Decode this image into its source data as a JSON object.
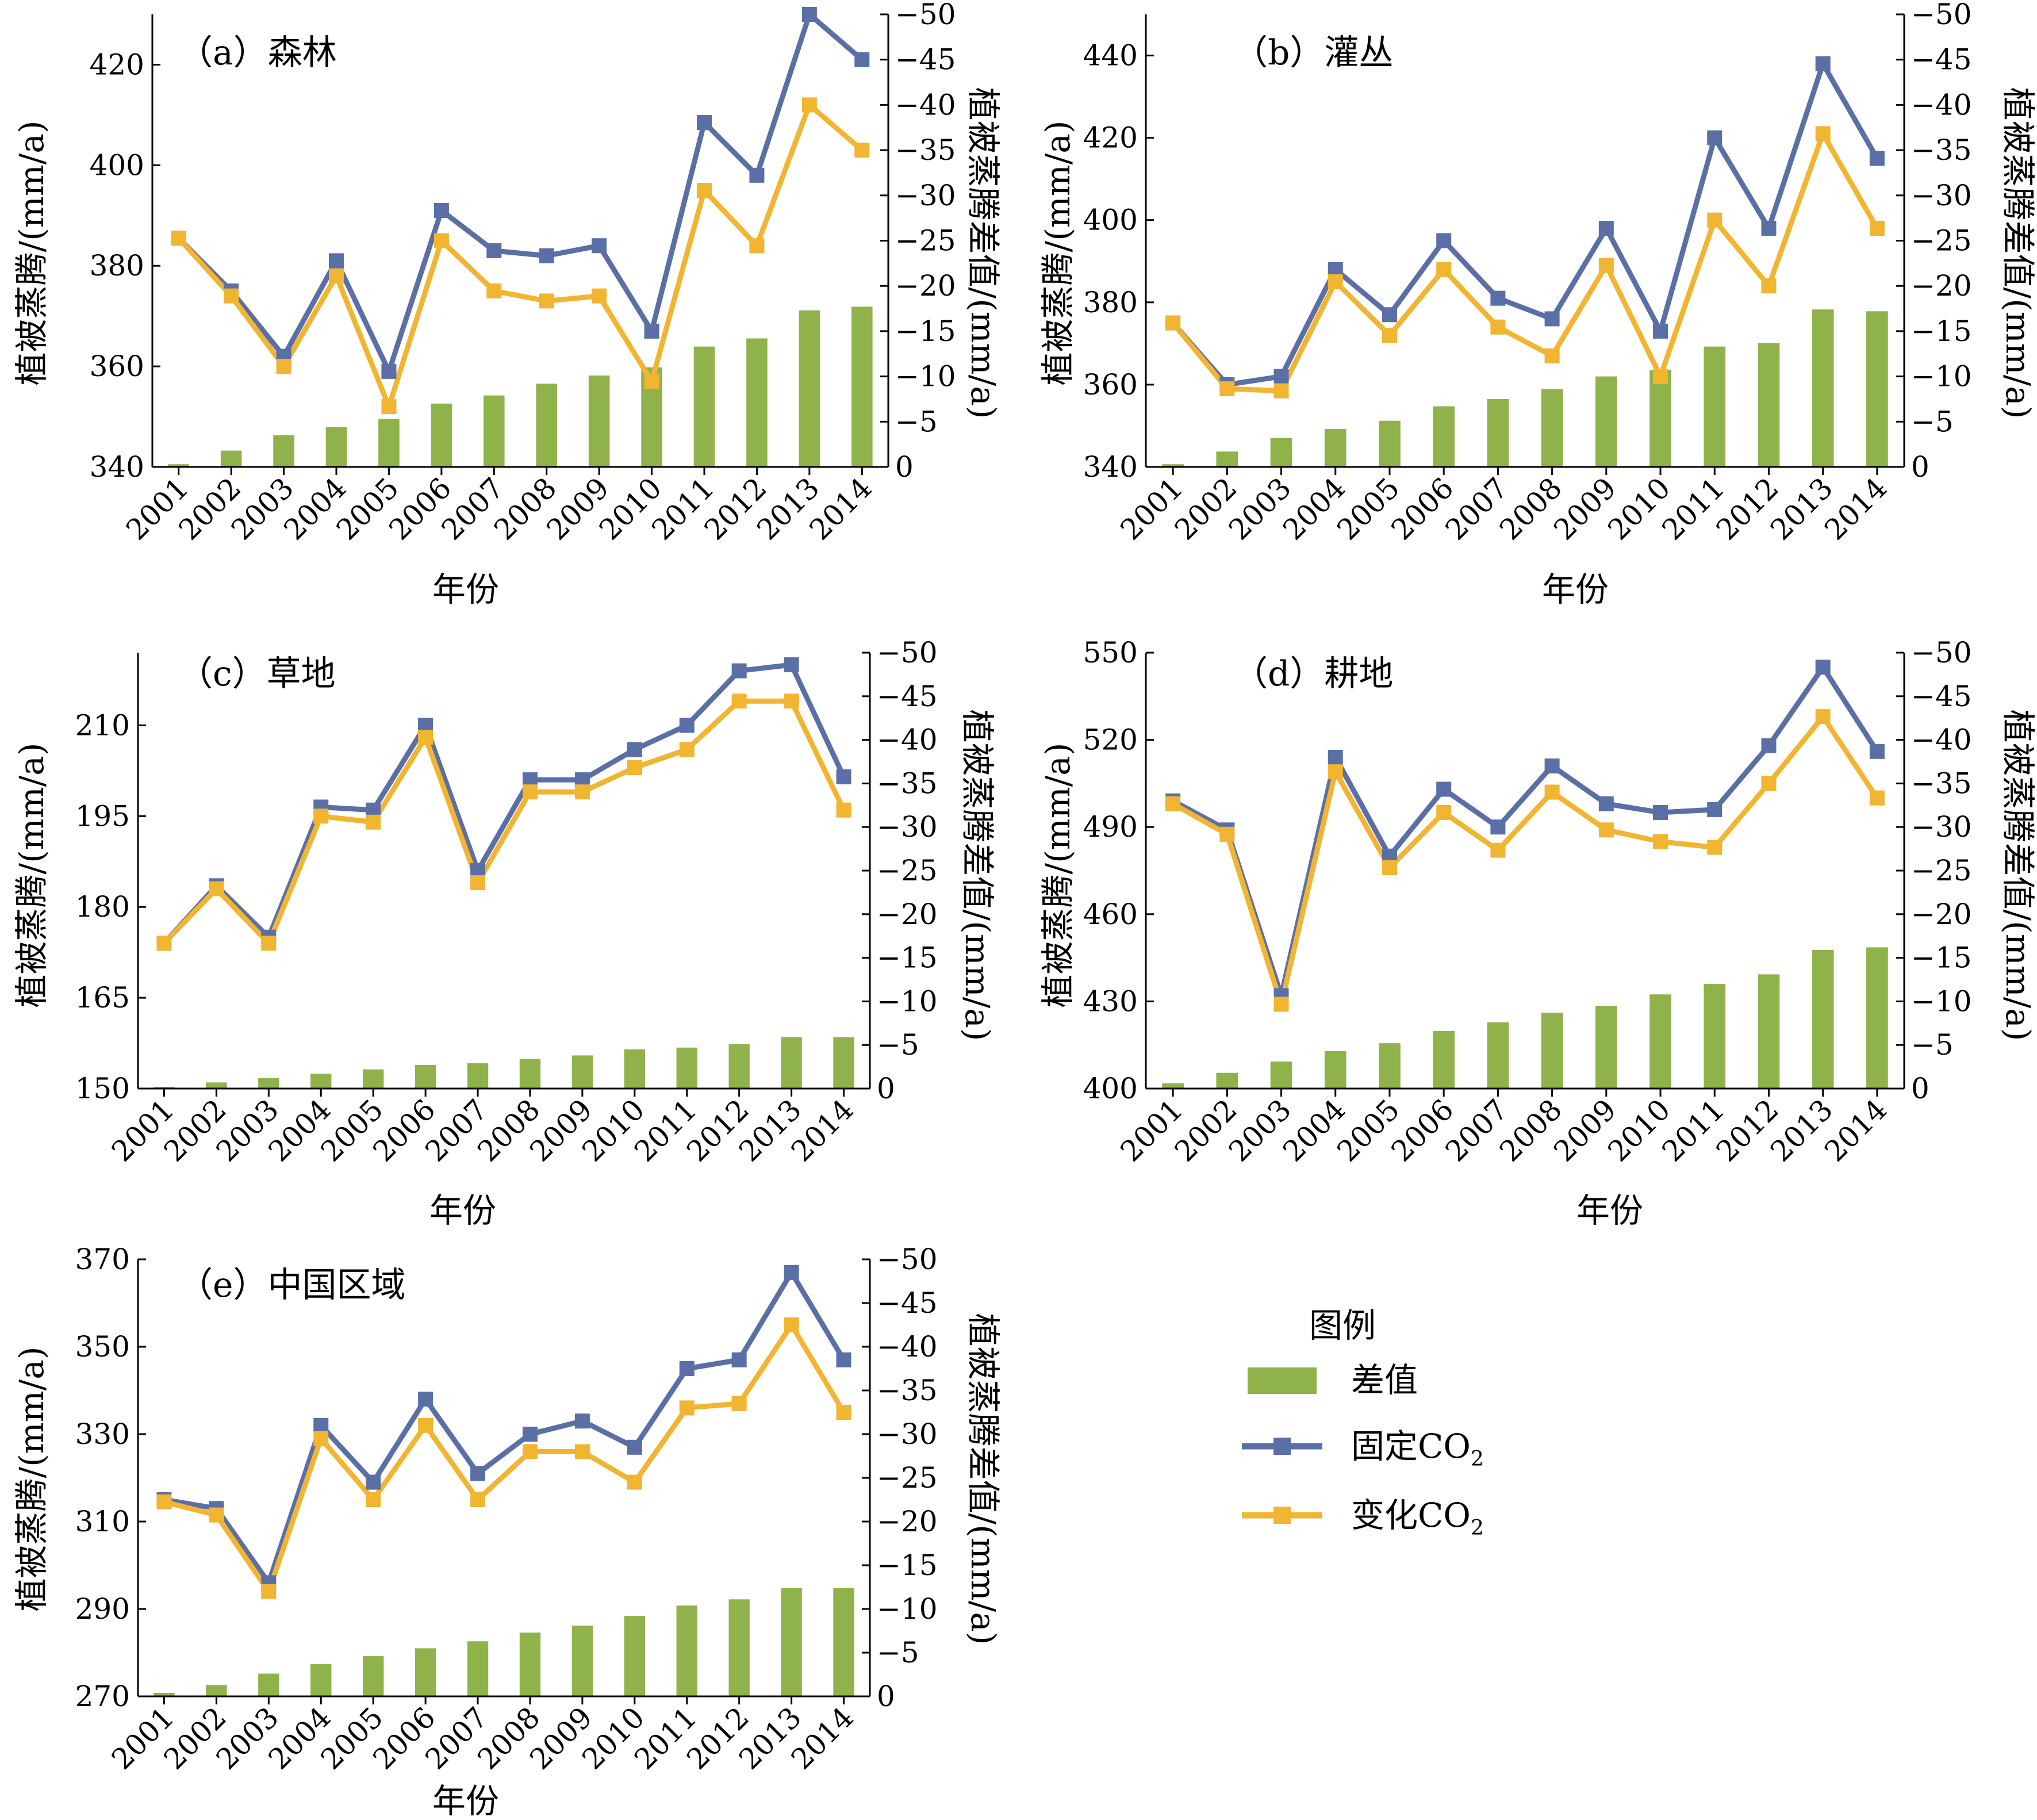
{
  "colors": {
    "bars": "#8fb24a",
    "fixed": "#5b6fa7",
    "varying": "#f2b531",
    "axis": "#000000"
  },
  "legend": {
    "title": "图例",
    "diff": "差值",
    "fixed": "固定CO",
    "fixed_sub": "2",
    "varying": "变化CO",
    "varying_sub": "2"
  },
  "chart_data": [
    {
      "type": "bar+line",
      "title": "（a）森林",
      "xlabel": "年份",
      "ylabel": "植被蒸腾/(mm/a)",
      "y2label": "植被蒸腾差值/(mm/a)",
      "categories": [
        "2001",
        "2002",
        "2003",
        "2004",
        "2005",
        "2006",
        "2007",
        "2008",
        "2009",
        "2010",
        "2011",
        "2012",
        "2013",
        "2014"
      ],
      "ylim": [
        340,
        430
      ],
      "yticks": [
        340,
        360,
        380,
        400,
        420
      ],
      "y2lim": [
        0,
        -50
      ],
      "y2ticks": [
        0,
        -5,
        -10,
        -15,
        -20,
        -25,
        -30,
        -35,
        -40,
        -45,
        -50
      ],
      "series": [
        {
          "name": "固定CO2",
          "axis": "left",
          "values": [
            385.5,
            375,
            362,
            381,
            359,
            391,
            383,
            382,
            384,
            367,
            408.5,
            398,
            430,
            421
          ]
        },
        {
          "name": "变化CO2",
          "axis": "left",
          "values": [
            385.5,
            374,
            360,
            378,
            352,
            385,
            375,
            373,
            374,
            357,
            395,
            384,
            412,
            403
          ]
        },
        {
          "name": "差值",
          "axis": "right",
          "type": "bar",
          "values": [
            -0.3,
            -1.8,
            -3.5,
            -4.4,
            -5.3,
            -7.0,
            -7.9,
            -9.2,
            -10.1,
            -11.0,
            -13.3,
            -14.2,
            -17.3,
            -17.7
          ]
        }
      ]
    },
    {
      "type": "bar+line",
      "title": "（b）灌丛",
      "xlabel": "年份",
      "ylabel": "植被蒸腾/(mm/a)",
      "y2label": "植被蒸腾差值/(mm/a)",
      "categories": [
        "2001",
        "2002",
        "2003",
        "2004",
        "2005",
        "2006",
        "2007",
        "2008",
        "2009",
        "2010",
        "2011",
        "2012",
        "2013",
        "2014"
      ],
      "ylim": [
        340,
        450
      ],
      "yticks": [
        340,
        360,
        380,
        400,
        420,
        440
      ],
      "y2lim": [
        0,
        -50
      ],
      "y2ticks": [
        0,
        -5,
        -10,
        -15,
        -20,
        -25,
        -30,
        -35,
        -40,
        -45,
        -50
      ],
      "series": [
        {
          "name": "固定CO2",
          "axis": "left",
          "values": [
            375,
            360,
            362,
            388,
            377,
            395,
            381,
            376,
            398,
            373,
            420,
            398,
            438,
            415
          ]
        },
        {
          "name": "变化CO2",
          "axis": "left",
          "values": [
            375,
            359,
            358.5,
            385,
            372,
            388,
            374,
            367,
            389,
            362,
            400,
            384,
            421,
            398
          ]
        },
        {
          "name": "差值",
          "axis": "right",
          "type": "bar",
          "values": [
            -0.3,
            -1.7,
            -3.2,
            -4.2,
            -5.1,
            -6.7,
            -7.5,
            -8.6,
            -10.0,
            -10.7,
            -13.3,
            -13.7,
            -17.4,
            -17.2
          ]
        }
      ]
    },
    {
      "type": "bar+line",
      "title": "（c）草地",
      "xlabel": "年份",
      "ylabel": "植被蒸腾/(mm/a)",
      "y2label": "植被蒸腾差值/(mm/a)",
      "categories": [
        "2001",
        "2002",
        "2003",
        "2004",
        "2005",
        "2006",
        "2007",
        "2008",
        "2009",
        "2010",
        "2011",
        "2012",
        "2013",
        "2014"
      ],
      "ylim": [
        150,
        222
      ],
      "yticks": [
        150,
        165,
        180,
        195,
        210
      ],
      "y2lim": [
        0,
        -50
      ],
      "y2ticks": [
        0,
        -5,
        -10,
        -15,
        -20,
        -25,
        -30,
        -35,
        -40,
        -45,
        -50
      ],
      "series": [
        {
          "name": "固定CO2",
          "axis": "left",
          "values": [
            174,
            183.5,
            175,
            196.5,
            196,
            210,
            186,
            201,
            201,
            206,
            210,
            219,
            220,
            201.5
          ]
        },
        {
          "name": "变化CO2",
          "axis": "left",
          "values": [
            174,
            183,
            174,
            195,
            194,
            208,
            184,
            199,
            199,
            203,
            206,
            214,
            214,
            196
          ]
        },
        {
          "name": "差值",
          "axis": "right",
          "type": "bar",
          "values": [
            -0.2,
            -0.7,
            -1.2,
            -1.7,
            -2.2,
            -2.7,
            -2.9,
            -3.4,
            -3.8,
            -4.5,
            -4.7,
            -5.1,
            -5.9,
            -5.9
          ]
        }
      ]
    },
    {
      "type": "bar+line",
      "title": "（d）耕地",
      "xlabel": "年份",
      "ylabel": "植被蒸腾/(mm/a)",
      "y2label": "植被蒸腾差值/(mm/a)",
      "categories": [
        "2001",
        "2002",
        "2003",
        "2004",
        "2005",
        "2006",
        "2007",
        "2008",
        "2009",
        "2010",
        "2011",
        "2012",
        "2013",
        "2014"
      ],
      "ylim": [
        400,
        550
      ],
      "yticks": [
        400,
        430,
        460,
        490,
        520,
        550
      ],
      "y2lim": [
        0,
        -50
      ],
      "y2ticks": [
        0,
        -5,
        -10,
        -15,
        -20,
        -25,
        -30,
        -35,
        -40,
        -45,
        -50
      ],
      "series": [
        {
          "name": "固定CO2",
          "axis": "left",
          "values": [
            499,
            489,
            432,
            514,
            480,
            503,
            490,
            511,
            498,
            495,
            496,
            518,
            545,
            516
          ]
        },
        {
          "name": "变化CO2",
          "axis": "left",
          "values": [
            498,
            487.5,
            429,
            509,
            476,
            495,
            482,
            502,
            489,
            485,
            483,
            505,
            528,
            500
          ]
        },
        {
          "name": "差值",
          "axis": "right",
          "type": "bar",
          "values": [
            -0.6,
            -1.8,
            -3.1,
            -4.3,
            -5.2,
            -6.6,
            -7.6,
            -8.7,
            -9.5,
            -10.8,
            -12.0,
            -13.1,
            -15.9,
            -16.2
          ]
        }
      ]
    },
    {
      "type": "bar+line",
      "title": "（e）中国区域",
      "xlabel": "年份",
      "ylabel": "植被蒸腾/(mm/a)",
      "y2label": "植被蒸腾差值/(mm/a)",
      "categories": [
        "2001",
        "2002",
        "2003",
        "2004",
        "2005",
        "2006",
        "2007",
        "2008",
        "2009",
        "2010",
        "2011",
        "2012",
        "2013",
        "2014"
      ],
      "ylim": [
        270,
        370
      ],
      "yticks": [
        270,
        290,
        310,
        330,
        350,
        370
      ],
      "y2lim": [
        0,
        -50
      ],
      "y2ticks": [
        0,
        -5,
        -10,
        -15,
        -20,
        -25,
        -30,
        -35,
        -40,
        -45,
        -50
      ],
      "series": [
        {
          "name": "固定CO2",
          "axis": "left",
          "values": [
            315,
            313,
            296,
            332,
            319,
            338,
            321,
            330,
            333,
            327,
            345,
            347,
            367,
            347
          ]
        },
        {
          "name": "变化CO2",
          "axis": "left",
          "values": [
            314.5,
            311.5,
            294,
            329,
            315,
            332,
            315,
            326,
            326,
            319,
            336,
            337,
            355,
            335
          ]
        },
        {
          "name": "差值",
          "axis": "right",
          "type": "bar",
          "values": [
            -0.4,
            -1.3,
            -2.6,
            -3.7,
            -4.6,
            -5.5,
            -6.3,
            -7.3,
            -8.1,
            -9.2,
            -10.4,
            -11.1,
            -12.4,
            -12.4
          ]
        }
      ]
    }
  ]
}
